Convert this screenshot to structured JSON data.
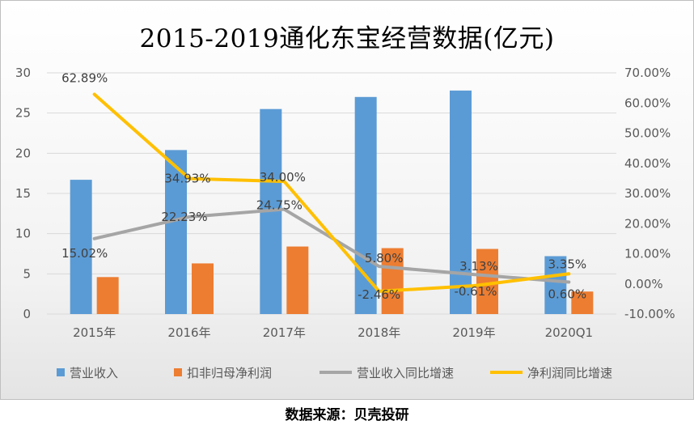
{
  "chart_data": {
    "type": "bar",
    "title": "2015-2019通化东宝经营数据(亿元)",
    "categories": [
      "2015年",
      "2016年",
      "2017年",
      "2018年",
      "2019年",
      "2020Q1"
    ],
    "ylim_left": [
      0,
      30
    ],
    "yticks_left": [
      "0",
      "5",
      "10",
      "15",
      "20",
      "25",
      "30"
    ],
    "ylim_right": [
      -10,
      70
    ],
    "yticks_right": [
      "-10.00%",
      "0.00%",
      "10.00%",
      "20.00%",
      "30.00%",
      "40.00%",
      "50.00%",
      "60.00%",
      "70.00%"
    ],
    "grid": true,
    "legend_position": "bottom",
    "series": [
      {
        "name": "营业收入",
        "type": "bar",
        "axis": "left",
        "color": "#5b9bd5",
        "values": [
          16.7,
          20.4,
          25.5,
          27.0,
          27.8,
          7.2
        ]
      },
      {
        "name": "扣非归母净利润",
        "type": "bar",
        "axis": "left",
        "color": "#ed7d31",
        "values": [
          4.6,
          6.3,
          8.4,
          8.2,
          8.1,
          2.8
        ]
      },
      {
        "name": "营业收入同比增速",
        "type": "line",
        "axis": "right",
        "color": "#a5a5a5",
        "values": [
          15.02,
          22.23,
          24.75,
          5.8,
          3.13,
          0.6
        ],
        "labels": [
          "15.02%",
          "22.23%",
          "24.75%",
          "5.80%",
          "3.13%",
          "0.60%"
        ]
      },
      {
        "name": "净利润同比增速",
        "type": "line",
        "axis": "right",
        "color": "#ffc000",
        "values": [
          62.89,
          34.93,
          34.0,
          -2.46,
          -0.61,
          3.35
        ],
        "labels": [
          "62.89%",
          "34.93%",
          "34.00%",
          "-2.46%",
          "-0.61%",
          "3.35%"
        ]
      }
    ]
  },
  "source_note": "数据来源：贝壳投研"
}
